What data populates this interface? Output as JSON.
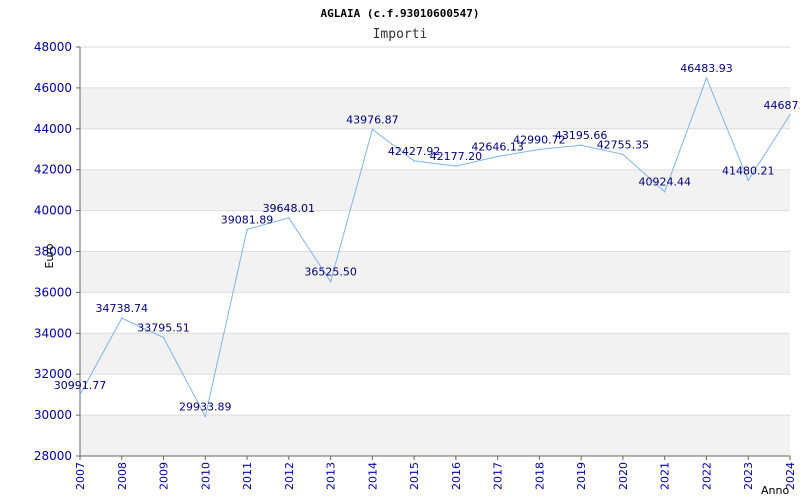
{
  "chart_data": {
    "type": "line",
    "title": "AGLAIA (c.f.93010600547)",
    "subtitle": "Importi",
    "xlabel": "Anno",
    "ylabel": "Euro",
    "x": [
      "2007",
      "2008",
      "2009",
      "2010",
      "2011",
      "2012",
      "2013",
      "2014",
      "2015",
      "2016",
      "2017",
      "2018",
      "2019",
      "2020",
      "2021",
      "2022",
      "2023",
      "2024"
    ],
    "values": [
      30991.77,
      34738.74,
      33795.51,
      29933.89,
      39081.89,
      39648.01,
      36525.5,
      43976.87,
      42427.92,
      42177.2,
      42646.13,
      42990.72,
      43195.66,
      42755.35,
      40924.44,
      46483.93,
      41480.21,
      44687.0
    ],
    "labels": [
      "30991.77",
      "34738.74",
      "33795.51",
      "29933.89",
      "39081.89",
      "39648.01",
      "36525.50",
      "43976.87",
      "42427.92",
      "42177.20",
      "42646.13",
      "42990.72",
      "43195.66",
      "42755.35",
      "40924.44",
      "46483.93",
      "41480.21",
      "44687."
    ],
    "yticks": [
      "28000",
      "30000",
      "32000",
      "34000",
      "36000",
      "38000",
      "40000",
      "42000",
      "44000",
      "46000",
      "48000"
    ],
    "ylim": [
      28000,
      48000
    ],
    "grid": true,
    "line_color": "#7eb5ee",
    "band_color": "#f2f2f2",
    "tick_color": "#0000aa",
    "label_color": "#000080"
  }
}
